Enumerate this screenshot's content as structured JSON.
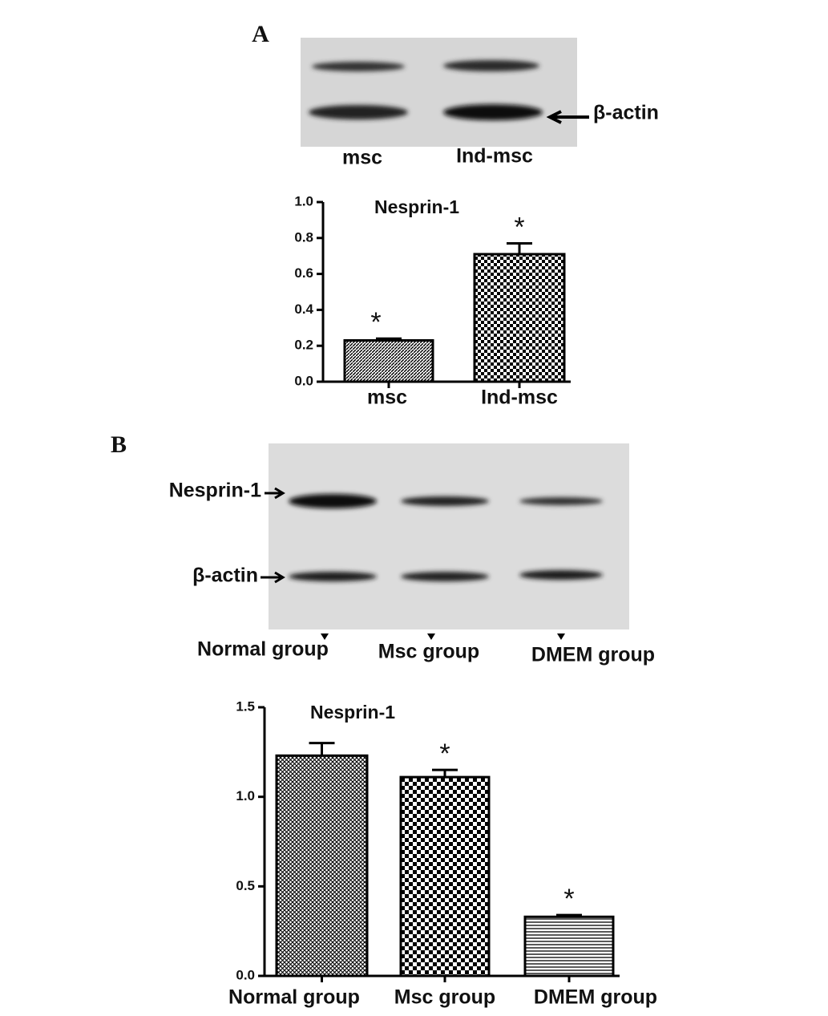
{
  "panels": {
    "A": {
      "label": "A",
      "band_labels": [
        "β-actin"
      ],
      "lanes": [
        "msc",
        "Ind-msc"
      ]
    },
    "B": {
      "label": "B",
      "band_labels": [
        "Nesprin-1",
        "β-actin"
      ],
      "lanes": [
        "Normal group",
        "Msc group",
        "DMEM group"
      ]
    }
  },
  "chart_data": [
    {
      "type": "bar",
      "title": "Nesprin-1",
      "categories": [
        "msc",
        "Ind-msc"
      ],
      "values": [
        0.23,
        0.71
      ],
      "errors": [
        0.01,
        0.06
      ],
      "annotations": [
        "*",
        "*"
      ],
      "color": "#000000",
      "ylim": [
        0,
        1.0
      ],
      "yticks": [
        {
          "value": 0,
          "label": "0.0"
        },
        0.2,
        0.4,
        0.6,
        0.8,
        {
          "value": 1.0,
          "label": "1.0"
        }
      ]
    },
    {
      "type": "bar",
      "title": "Nesprin-1",
      "categories": [
        "Normal group",
        "Msc group",
        "DMEM group"
      ],
      "values": [
        1.23,
        1.11,
        0.33
      ],
      "errors": [
        0.07,
        0.04,
        0.01
      ],
      "annotations": [
        null,
        "*",
        "*"
      ],
      "color": "#000000",
      "ylim": [
        0,
        1.5
      ],
      "yticks": [
        {
          "value": 0,
          "label": "0.0"
        },
        0.5,
        {
          "value": 1.0,
          "label": "1.0"
        },
        1.5
      ]
    }
  ]
}
